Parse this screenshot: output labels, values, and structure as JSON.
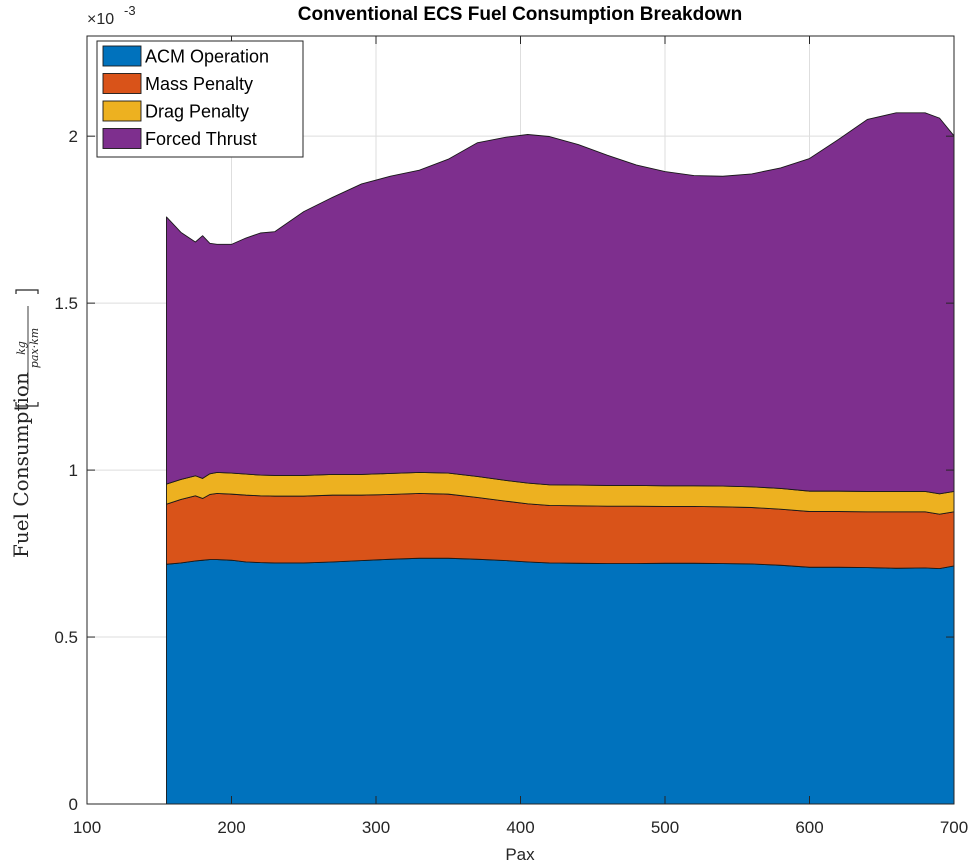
{
  "chart_data": {
    "type": "area",
    "title": "Conventional ECS Fuel Consumption Breakdown",
    "xlabel": "Pax",
    "ylabel": "Fuel Consumption",
    "ylabel_unit_numerator": "kg",
    "ylabel_unit_denominator": "pax·km",
    "exponent_label": "×10",
    "exponent_power": "-3",
    "xlim": [
      100,
      700
    ],
    "ylim": [
      0,
      2.3
    ],
    "x_ticks": [
      "100",
      "200",
      "300",
      "400",
      "500",
      "600",
      "700"
    ],
    "y_ticks": [
      "0",
      "0.5",
      "1",
      "1.5",
      "2"
    ],
    "y_tick_values": [
      0,
      0.5,
      1,
      1.5,
      2
    ],
    "x_tick_values": [
      100,
      200,
      300,
      400,
      500,
      600,
      700
    ],
    "grid": true,
    "stacked": true,
    "legend_position": "top-left",
    "x": [
      155,
      165,
      175,
      180,
      185,
      190,
      200,
      210,
      220,
      230,
      250,
      270,
      290,
      310,
      330,
      350,
      370,
      390,
      405,
      420,
      440,
      460,
      480,
      500,
      520,
      540,
      560,
      580,
      600,
      620,
      640,
      660,
      680,
      690,
      700
    ],
    "series": [
      {
        "name": "ACM Operation",
        "color": "#0072BD",
        "values": [
          0.718,
          0.722,
          0.728,
          0.73,
          0.732,
          0.732,
          0.73,
          0.725,
          0.723,
          0.722,
          0.722,
          0.725,
          0.729,
          0.733,
          0.736,
          0.736,
          0.733,
          0.729,
          0.725,
          0.722,
          0.721,
          0.72,
          0.72,
          0.721,
          0.721,
          0.72,
          0.719,
          0.715,
          0.709,
          0.709,
          0.708,
          0.706,
          0.707,
          0.705,
          0.713
        ]
      },
      {
        "name": "Mass Penalty",
        "color": "#D95319",
        "values": [
          0.18,
          0.19,
          0.195,
          0.185,
          0.195,
          0.198,
          0.198,
          0.2,
          0.2,
          0.2,
          0.2,
          0.2,
          0.196,
          0.194,
          0.194,
          0.192,
          0.185,
          0.178,
          0.174,
          0.172,
          0.172,
          0.172,
          0.172,
          0.17,
          0.17,
          0.17,
          0.169,
          0.168,
          0.167,
          0.167,
          0.167,
          0.169,
          0.168,
          0.163,
          0.162
        ]
      },
      {
        "name": "Drag Penalty",
        "color": "#EDB120",
        "values": [
          0.06,
          0.06,
          0.06,
          0.06,
          0.062,
          0.063,
          0.063,
          0.063,
          0.062,
          0.062,
          0.062,
          0.062,
          0.062,
          0.063,
          0.063,
          0.063,
          0.063,
          0.062,
          0.062,
          0.062,
          0.062,
          0.062,
          0.062,
          0.062,
          0.062,
          0.062,
          0.062,
          0.062,
          0.061,
          0.061,
          0.061,
          0.061,
          0.061,
          0.061,
          0.061
        ]
      },
      {
        "name": "Forced Thrust",
        "color": "#7E2F8E",
        "values": [
          0.8,
          0.74,
          0.7,
          0.727,
          0.69,
          0.683,
          0.685,
          0.707,
          0.725,
          0.73,
          0.79,
          0.83,
          0.87,
          0.89,
          0.905,
          0.94,
          0.999,
          1.028,
          1.044,
          1.043,
          1.02,
          0.989,
          0.96,
          0.941,
          0.929,
          0.928,
          0.937,
          0.96,
          0.996,
          1.053,
          1.114,
          1.134,
          1.134,
          1.125,
          1.065
        ]
      }
    ]
  }
}
